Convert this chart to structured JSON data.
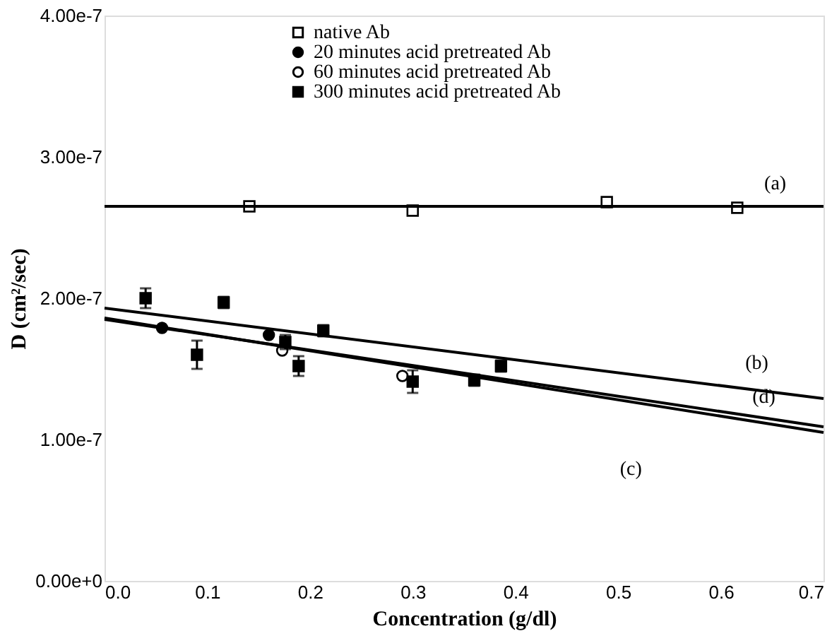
{
  "chart_data": {
    "type": "scatter",
    "xlabel": "Concentration (g/dl)",
    "ylabel": "D (cm²/sec)",
    "xlim": [
      0,
      0.7
    ],
    "ylim": [
      0,
      4e-07
    ],
    "xticks": [
      {
        "value": 0,
        "label": "0.0"
      },
      {
        "value": 0.1,
        "label": "0.1"
      },
      {
        "value": 0.2,
        "label": "0.2"
      },
      {
        "value": 0.3,
        "label": "0.3"
      },
      {
        "value": 0.4,
        "label": "0.4"
      },
      {
        "value": 0.5,
        "label": "0.5"
      },
      {
        "value": 0.6,
        "label": "0.6"
      },
      {
        "value": 0.7,
        "label": "0.7"
      }
    ],
    "yticks": [
      {
        "value": 0,
        "label": "0.00e+0"
      },
      {
        "value": 1e-07,
        "label": "1.00e-7"
      },
      {
        "value": 2e-07,
        "label": "2.00e-7"
      },
      {
        "value": 3e-07,
        "label": "3.00e-7"
      },
      {
        "value": 4e-07,
        "label": "4.00e-7"
      }
    ],
    "grid": false,
    "legend": "top",
    "series": [
      {
        "name": "native Ab",
        "marker": "square",
        "color": "#ffffff",
        "x": [
          0.141,
          0.3,
          0.489,
          0.616
        ],
        "values": [
          2.65e-07,
          2.62e-07,
          2.68e-07,
          2.64e-07
        ]
      },
      {
        "name": "20 minutes acid pretreated Ab",
        "marker": "circle",
        "color": "#000000",
        "x": [
          0.056,
          0.16
        ],
        "values": [
          1.79e-07,
          1.74e-07
        ]
      },
      {
        "name": "60 minutes acid pretreated Ab",
        "marker": "circle",
        "color": "#ffffff",
        "x": [
          0.173,
          0.29
        ],
        "values": [
          1.63e-07,
          1.45e-07
        ]
      },
      {
        "name": "300 minutes acid pretreated Ab",
        "marker": "square",
        "color": "#000000",
        "x": [
          0.04,
          0.09,
          0.116,
          0.176,
          0.189,
          0.213,
          0.3,
          0.36,
          0.386
        ],
        "values": [
          2e-07,
          1.6e-07,
          1.97e-07,
          1.69e-07,
          1.52e-07,
          1.77e-07,
          1.41e-07,
          1.42e-07,
          1.52e-07
        ],
        "errors": [
          7e-09,
          1e-08,
          4e-09,
          5e-09,
          7e-09,
          4e-09,
          8e-09,
          4e-09,
          4e-09
        ]
      },
      {
        "type": "line",
        "line_style": "solid",
        "color": "#000000",
        "x": [
          0,
          0.7
        ],
        "values": [
          2.65e-07,
          2.65e-07
        ]
      },
      {
        "type": "line",
        "line_style": "solid",
        "color": "#000000",
        "x": [
          0,
          0.7
        ],
        "values": [
          1.93e-07,
          1.29e-07
        ]
      },
      {
        "type": "line",
        "line_style": "solid",
        "color": "#000000",
        "x": [
          0,
          0.7
        ],
        "values": [
          1.86e-07,
          1.05e-07
        ]
      },
      {
        "type": "line",
        "line_style": "solid",
        "color": "#000000",
        "x": [
          0,
          0.7
        ],
        "values": [
          1.85e-07,
          1.09e-07
        ]
      }
    ],
    "annotations": [
      {
        "text": "(a)",
        "x": 0.664,
        "y": 2.65e-07
      },
      {
        "text": "(b)",
        "x": 0.58,
        "y": 1.4e-07
      },
      {
        "text": "(d)",
        "x": 0.58,
        "y": 1.22e-07
      },
      {
        "text": "(c)",
        "x": 0.54,
        "y": 1.24e-07
      }
    ]
  }
}
